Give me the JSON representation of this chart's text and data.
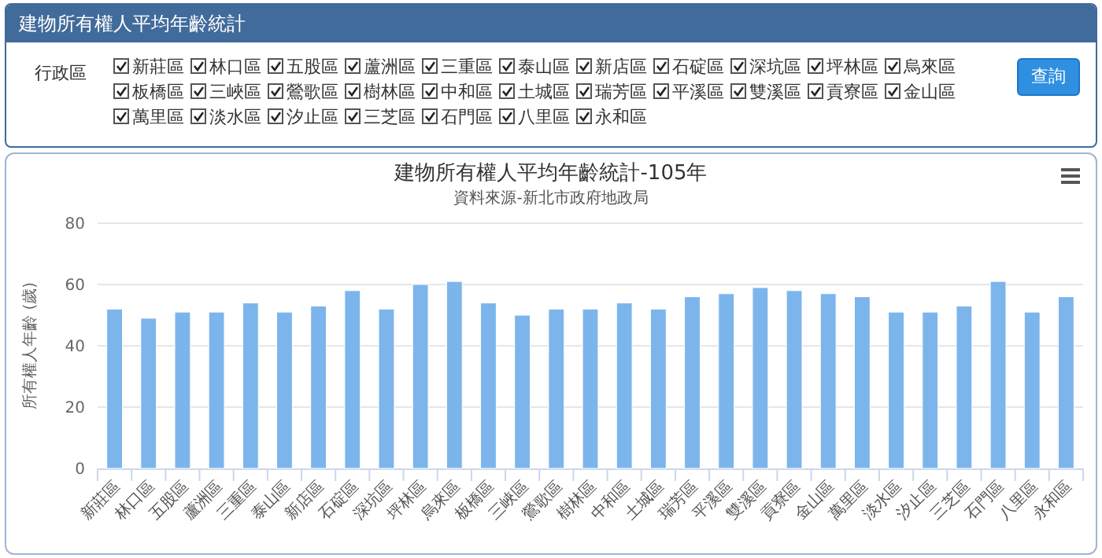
{
  "chart_data": [
    {
      "type": "other",
      "title": "建物所有權人平均年齡統計",
      "annotations": [
        "行政區",
        "新莊區",
        "林口區",
        "五股區",
        "蘆洲區",
        "三重區",
        "泰山區",
        "新店區",
        "石碇區",
        "深坑區",
        "坪林區",
        "烏來區",
        "板橋區",
        "三峽區",
        "鶯歌區",
        "樹林區",
        "中和區",
        "土城區",
        "瑞芳區",
        "平溪區",
        "雙溪區",
        "貢寮區",
        "金山區",
        "萬里區",
        "淡水區",
        "汐止區",
        "三芝區",
        "石門區",
        "八里區",
        "永和區",
        "查詢"
      ]
    },
    {
      "type": "bar",
      "title": "建物所有權人平均年齡統計-105年",
      "subtitle": "資料來源-新北市政府地政局",
      "ylabel": "所有權人年齡 (歲)",
      "categories": [
        "新莊區",
        "林口區",
        "五股區",
        "蘆洲區",
        "三重區",
        "泰山區",
        "新店區",
        "石碇區",
        "深坑區",
        "坪林區",
        "烏來區",
        "板橋區",
        "三峽區",
        "鶯歌區",
        "樹林區",
        "中和區",
        "土城區",
        "瑞芳區",
        "平溪區",
        "雙溪區",
        "貢寮區",
        "金山區",
        "萬里區",
        "淡水區",
        "汐止區",
        "三芝區",
        "石門區",
        "八里區",
        "永和區"
      ],
      "values": [
        52,
        49,
        51,
        51,
        54,
        51,
        53,
        58,
        52,
        60,
        61,
        54,
        50,
        52,
        52,
        54,
        52,
        56,
        57,
        59,
        58,
        57,
        56,
        51,
        51,
        53,
        61,
        51,
        56
      ],
      "color": "#7cb5ec",
      "ylim": [
        0,
        80
      ],
      "yticks": [
        0,
        20,
        40,
        60,
        80
      ],
      "grid": "y"
    }
  ]
}
